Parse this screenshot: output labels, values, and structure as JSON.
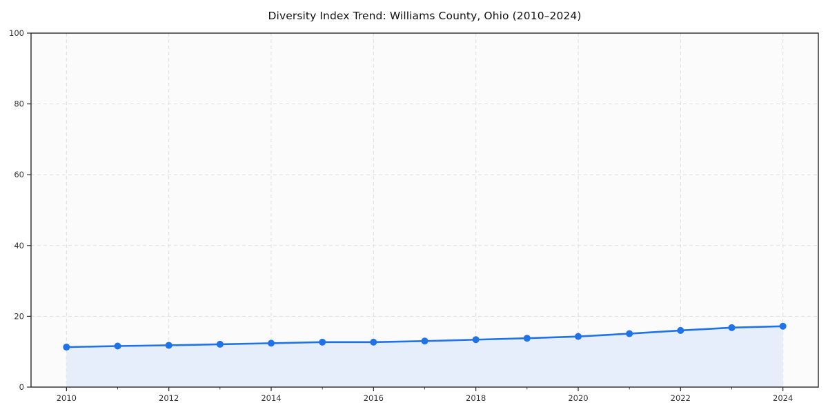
{
  "chart_data": {
    "type": "line",
    "title": "Diversity Index Trend: Williams County, Ohio (2010–2024)",
    "x": [
      2010,
      2011,
      2012,
      2013,
      2014,
      2015,
      2016,
      2017,
      2018,
      2019,
      2020,
      2021,
      2022,
      2023,
      2024
    ],
    "series": [
      {
        "name": "Diversity Index",
        "values": [
          11.3,
          11.6,
          11.8,
          12.1,
          12.4,
          12.7,
          12.7,
          13.0,
          13.4,
          13.8,
          14.3,
          15.1,
          16.0,
          16.8,
          17.2
        ]
      }
    ],
    "xlabel": "",
    "ylabel": "",
    "ylim": [
      0,
      100
    ],
    "xlim": [
      2010,
      2024
    ],
    "yticks": [
      0,
      20,
      40,
      60,
      80,
      100
    ],
    "xticks": [
      2010,
      2012,
      2014,
      2016,
      2018,
      2020,
      2022,
      2024
    ],
    "grid": true,
    "grid_style": "dashed",
    "legend": "none",
    "marker": "circle",
    "area_fill": true,
    "colors": {
      "line": "#1f72e8",
      "marker": "#1f72e8",
      "area": "#e6eefb",
      "grid": "#dedede",
      "spine": "#262626",
      "tick_label": "#333333",
      "title": "#111111",
      "plot_background": "#fbfbfb",
      "figure_background": "#ffffff"
    }
  }
}
